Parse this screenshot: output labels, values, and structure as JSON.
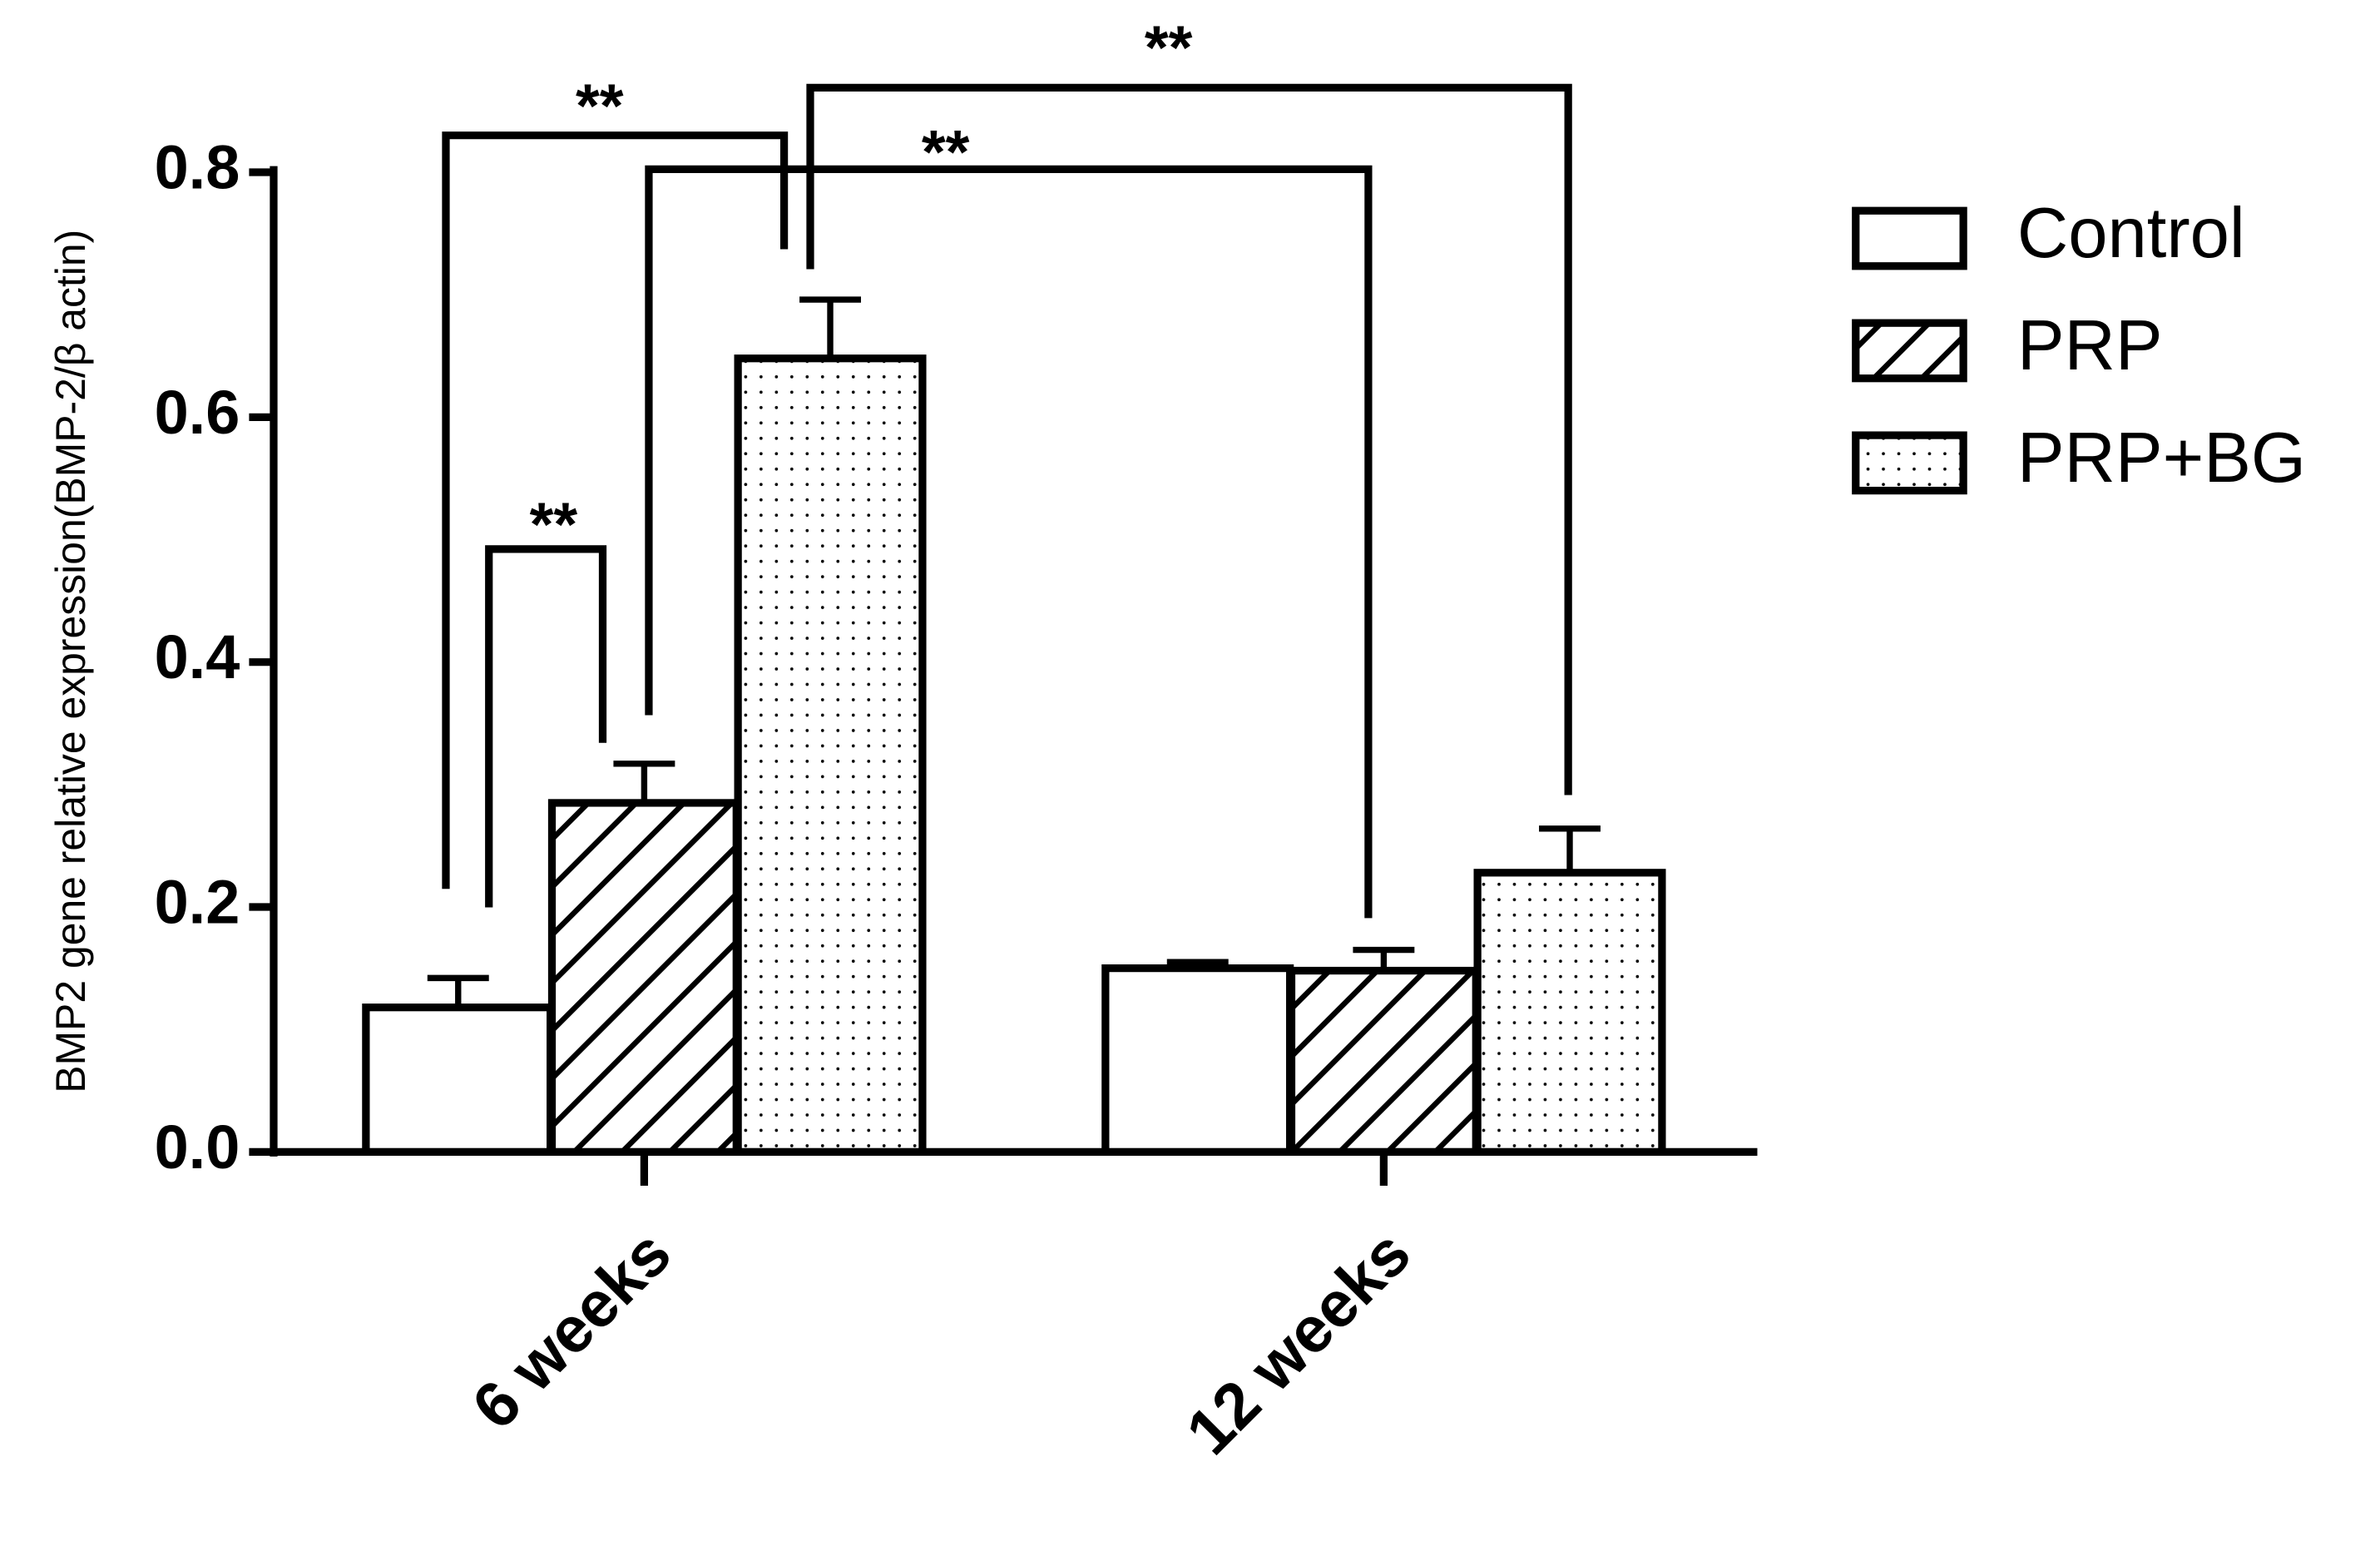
{
  "chart_data": {
    "type": "bar",
    "y_label": "BMP2 gene relative expression(BMP-2/β actin)",
    "categories": [
      "6 weeks",
      "12 weeks"
    ],
    "series": [
      {
        "name": "Control",
        "color": "#ffffff",
        "pattern": "none",
        "values": [
          0.118,
          0.15
        ],
        "errors": [
          0.024,
          0.005
        ]
      },
      {
        "name": "PRP",
        "color": "#ffffff",
        "pattern": "hatch",
        "values": [
          0.285,
          0.148
        ],
        "errors": [
          0.032,
          0.017
        ]
      },
      {
        "name": "PRP+BG",
        "color": "#ffffff",
        "pattern": "dots",
        "values": [
          0.648,
          0.228
        ],
        "errors": [
          0.048,
          0.036
        ]
      }
    ],
    "ylim": [
      0,
      0.8
    ],
    "yticks": [
      {
        "value": 0,
        "label": "0.0"
      },
      0.2,
      0.4,
      0.6,
      0.8
    ],
    "annotations": [
      "**",
      "**",
      "**",
      "**"
    ],
    "legend": "right"
  }
}
